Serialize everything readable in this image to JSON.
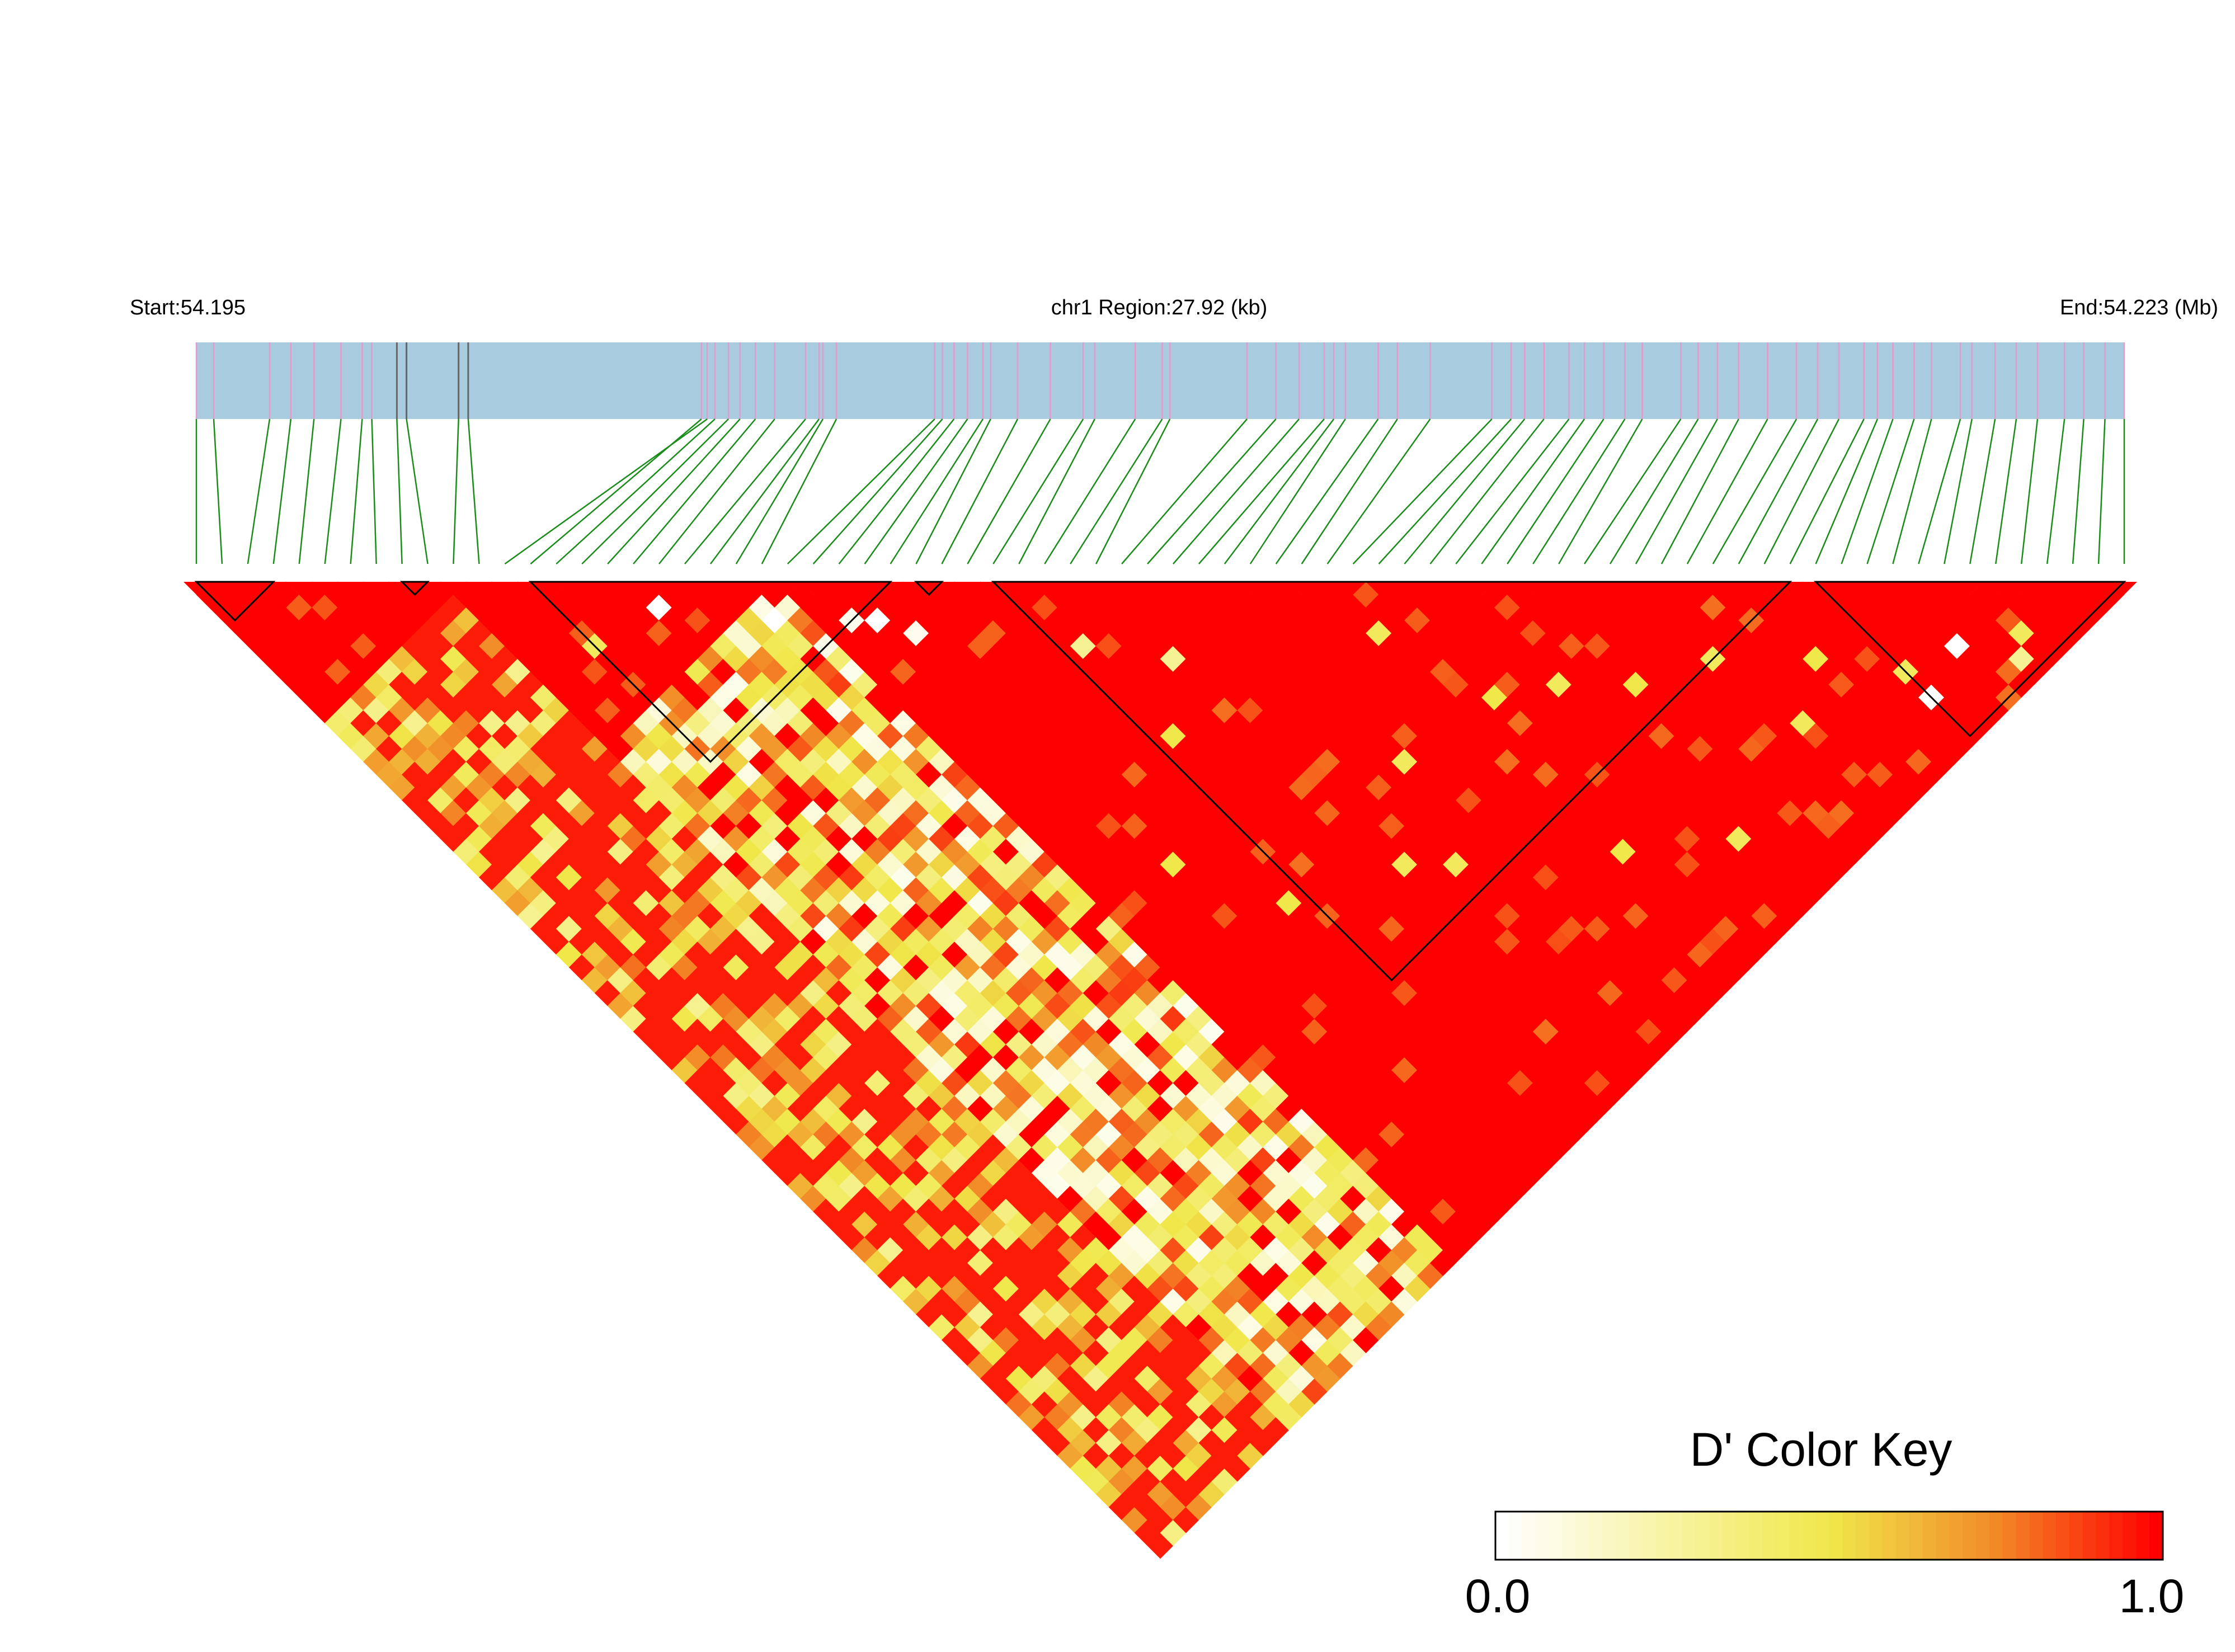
{
  "chart_data": {
    "type": "heatmap",
    "subtype": "ld-triangle",
    "header": {
      "start_label": "Start:54.195",
      "region_label": "chr1 Region:27.92 (kb)",
      "end_label": "End:54.223 (Mb)"
    },
    "region": {
      "chromosome": "chr1",
      "start_mb": 54.195,
      "end_mb": 54.223,
      "length_kb": 27.92
    },
    "snp_count": 76,
    "snp_positions_frac": [
      0.0,
      0.009,
      0.038,
      0.049,
      0.061,
      0.075,
      0.086,
      0.091,
      0.104,
      0.109,
      0.136,
      0.141,
      0.265,
      0.262,
      0.269,
      0.276,
      0.282,
      0.29,
      0.3,
      0.316,
      0.323,
      0.325,
      0.332,
      0.383,
      0.387,
      0.393,
      0.4,
      0.408,
      0.412,
      0.426,
      0.443,
      0.46,
      0.466,
      0.487,
      0.501,
      0.505,
      0.545,
      0.56,
      0.572,
      0.585,
      0.59,
      0.596,
      0.613,
      0.623,
      0.64,
      0.672,
      0.682,
      0.689,
      0.699,
      0.712,
      0.72,
      0.73,
      0.741,
      0.75,
      0.77,
      0.779,
      0.789,
      0.8,
      0.815,
      0.83,
      0.841,
      0.852,
      0.865,
      0.872,
      0.88,
      0.891,
      0.9,
      0.915,
      0.921,
      0.933,
      0.944,
      0.955,
      0.969,
      0.979,
      0.99,
      1.0
    ],
    "blocks_snp_index": [
      [
        0,
        3
      ],
      [
        8,
        9
      ],
      [
        13,
        27
      ],
      [
        28,
        29
      ],
      [
        31,
        62
      ],
      [
        63,
        75
      ]
    ],
    "color_key": {
      "title": "D' Color Key",
      "min_label": "0.0",
      "max_label": "1.0",
      "min": 0.0,
      "max": 1.0,
      "stops": [
        {
          "value": 0.0,
          "color": "#ffffff"
        },
        {
          "value": 0.5,
          "color": "#f0e84a"
        },
        {
          "value": 0.75,
          "color": "#f28c28"
        },
        {
          "value": 1.0,
          "color": "#ff0000"
        }
      ]
    },
    "colors": {
      "gene_bar": "#a8cbe0",
      "snp_tick": "#e49acb",
      "snp_tick_dark": "#666666",
      "connector": "#1a8c1a",
      "block_outline": "#000000",
      "high_ld": "#ff0000"
    },
    "dprime_structure": {
      "description_note": "",
      "low_ld_snp_index_range": [
        10,
        22
      ],
      "high_ld_default": 1.0
    },
    "dprime_overrides": [
      [
        17,
        19,
        0.0
      ],
      [
        21,
        24,
        0.0
      ],
      [
        24,
        27,
        0.05
      ],
      [
        25,
        28,
        0.0
      ],
      [
        26,
        30,
        0.05
      ],
      [
        13,
        18,
        0.45
      ],
      [
        12,
        24,
        0.5
      ],
      [
        32,
        37,
        0.3
      ],
      [
        35,
        41,
        0.3
      ],
      [
        44,
        48,
        0.45
      ],
      [
        40,
        54,
        0.45
      ],
      [
        49,
        57,
        0.45
      ],
      [
        56,
        62,
        0.45
      ],
      [
        52,
        60,
        0.5
      ],
      [
        60,
        66,
        0.5
      ],
      [
        66,
        71,
        0.0
      ],
      [
        68,
        74,
        0.3
      ],
      [
        69,
        73,
        0.45
      ],
      [
        63,
        70,
        0.45
      ],
      [
        50,
        70,
        0.45
      ],
      [
        45,
        66,
        0.5
      ],
      [
        38,
        60,
        0.45
      ],
      [
        30,
        55,
        0.5
      ],
      [
        32,
        44,
        0.5
      ],
      [
        27,
        49,
        0.5
      ],
      [
        36,
        58,
        0.45
      ],
      [
        57,
        68,
        0.45
      ],
      [
        63,
        72,
        0.0
      ],
      [
        46,
        55,
        0.5
      ]
    ]
  }
}
